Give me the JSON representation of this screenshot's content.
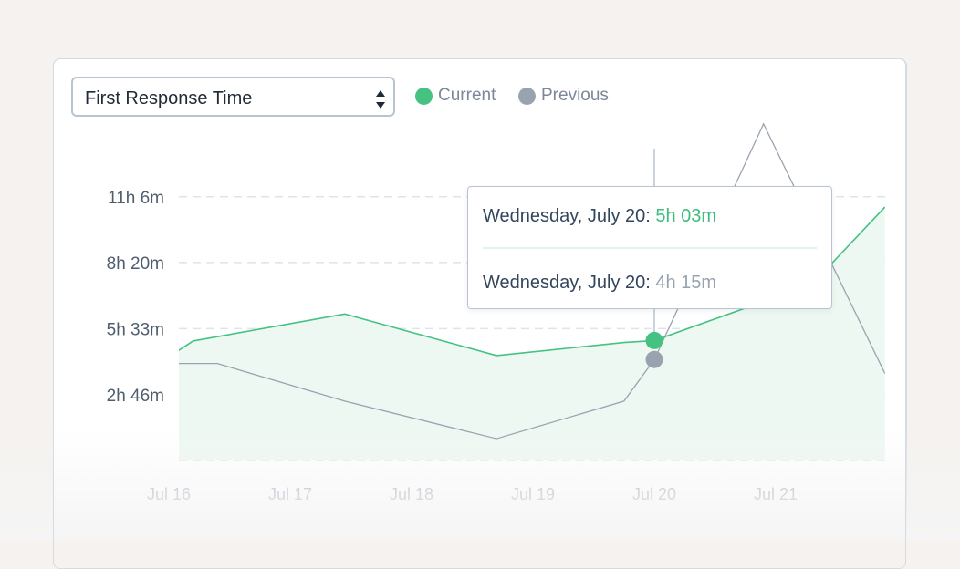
{
  "selector": {
    "label": "First Response Time"
  },
  "legend": [
    {
      "name": "Current",
      "color": "#45c282"
    },
    {
      "name": "Previous",
      "color": "#99a3b0"
    }
  ],
  "chart_data": {
    "type": "area",
    "y_tick_labels": [
      "2h 46m",
      "5h 33m",
      "8h 20m",
      "11h 6m"
    ],
    "y_ticks_minutes": [
      166,
      333,
      500,
      666
    ],
    "ylim_minutes": [
      0,
      666
    ],
    "x_tick_labels": [
      "Jul 16",
      "Jul 17",
      "Jul 18",
      "Jul 19",
      "Jul 20",
      "Jul 21"
    ],
    "grid": true,
    "series": [
      {
        "name": "Current",
        "color": "#45c282",
        "fill": true,
        "points": [
          {
            "x": 15.88,
            "y": 238
          },
          {
            "x": 16.2,
            "y": 302
          },
          {
            "x": 17.45,
            "y": 370
          },
          {
            "x": 18.7,
            "y": 265
          },
          {
            "x": 19.75,
            "y": 298
          },
          {
            "x": 20.0,
            "y": 303
          },
          {
            "x": 21.3,
            "y": 445
          },
          {
            "x": 21.9,
            "y": 640
          }
        ]
      },
      {
        "name": "Previous",
        "color": "#99a3b0",
        "fill": false,
        "points": [
          {
            "x": 15.88,
            "y": 245
          },
          {
            "x": 16.4,
            "y": 245
          },
          {
            "x": 17.45,
            "y": 150
          },
          {
            "x": 18.7,
            "y": 55
          },
          {
            "x": 19.75,
            "y": 150
          },
          {
            "x": 20.0,
            "y": 255
          },
          {
            "x": 20.9,
            "y": 850
          },
          {
            "x": 21.9,
            "y": 220
          }
        ]
      }
    ],
    "hover": {
      "x": 20.0,
      "current_y": 303,
      "previous_y": 255,
      "current_label": "Wednesday, July 20: ",
      "current_value": "5h 03m",
      "previous_label": "Wednesday, July 20: ",
      "previous_value": "4h 15m"
    }
  }
}
